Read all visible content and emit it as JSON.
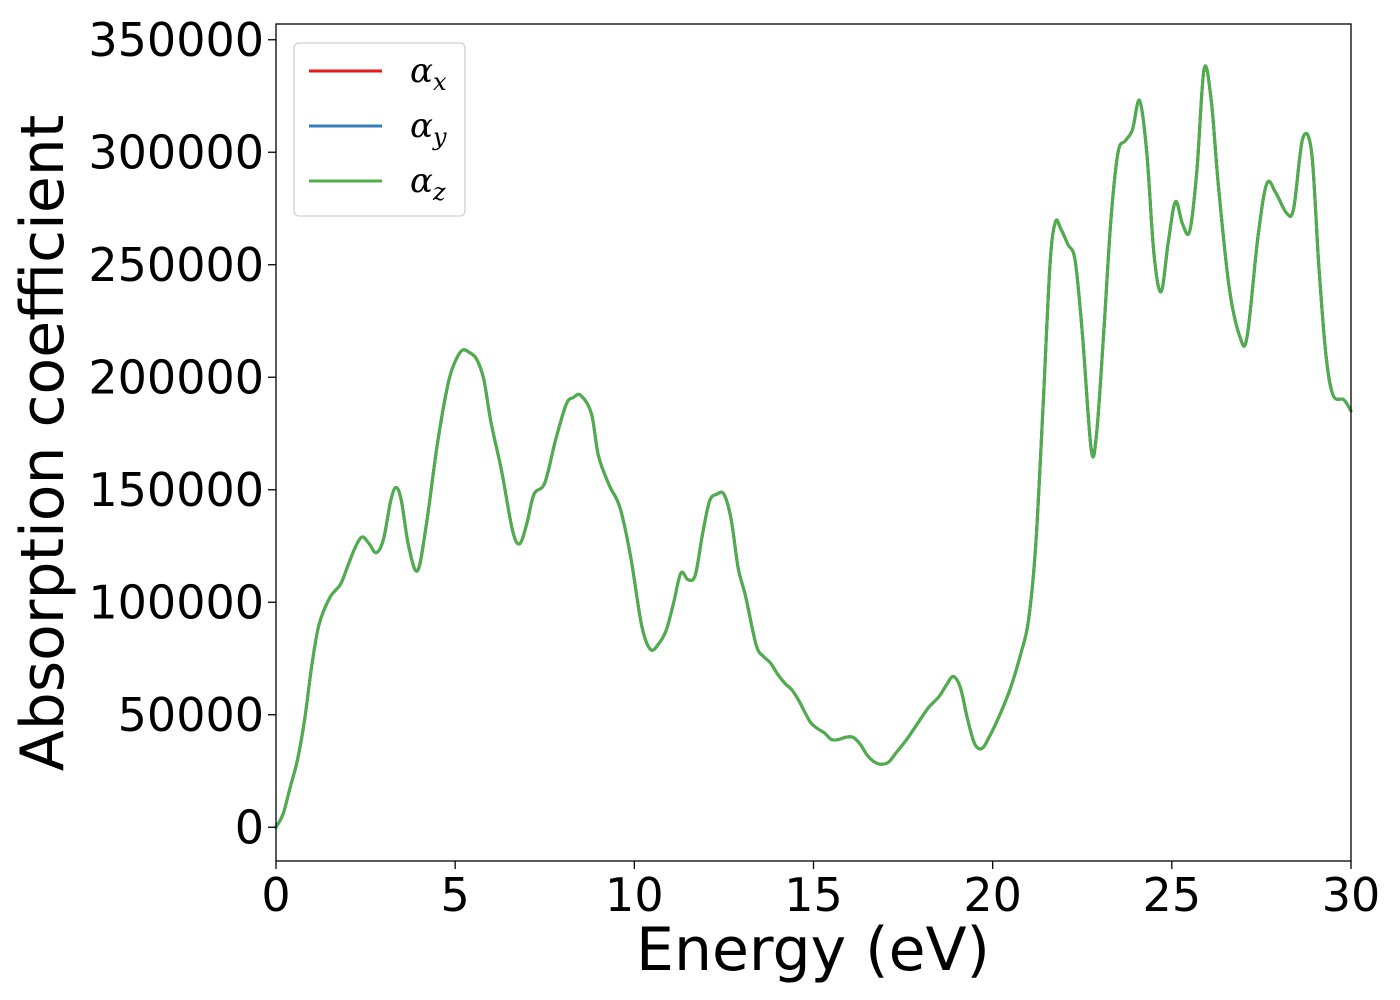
{
  "chart_data": {
    "type": "line",
    "xlabel": "Energy (eV)",
    "ylabel": "Absorption coefficient",
    "xlim": [
      0,
      30
    ],
    "ylim": [
      -15000,
      357000
    ],
    "xticks": [
      0,
      5,
      10,
      15,
      20,
      25,
      30
    ],
    "xtick_labels": [
      "0",
      "5",
      "10",
      "15",
      "20",
      "25",
      "30"
    ],
    "yticks": [
      0,
      50000,
      100000,
      150000,
      200000,
      250000,
      300000,
      350000
    ],
    "ytick_labels": [
      "0",
      "50000",
      "100000",
      "150000",
      "200000",
      "250000",
      "300000",
      "350000"
    ],
    "grid": false,
    "legend_position": "top-left",
    "x": [
      0,
      0.2,
      0.4,
      0.6,
      0.8,
      1.0,
      1.2,
      1.5,
      1.8,
      2.0,
      2.2,
      2.4,
      2.6,
      2.8,
      3.0,
      3.2,
      3.35,
      3.5,
      3.7,
      3.95,
      4.2,
      4.5,
      4.8,
      5.0,
      5.2,
      5.4,
      5.6,
      5.8,
      6.0,
      6.3,
      6.6,
      6.8,
      7.0,
      7.2,
      7.5,
      7.8,
      8.1,
      8.3,
      8.5,
      8.8,
      9.0,
      9.3,
      9.6,
      9.9,
      10.2,
      10.45,
      10.7,
      10.9,
      11.1,
      11.3,
      11.5,
      11.7,
      11.9,
      12.1,
      12.3,
      12.5,
      12.7,
      12.9,
      13.1,
      13.4,
      13.6,
      13.8,
      14.0,
      14.2,
      14.4,
      14.6,
      14.9,
      15.1,
      15.3,
      15.5,
      15.7,
      15.9,
      16.1,
      16.3,
      16.5,
      16.7,
      16.9,
      17.1,
      17.3,
      17.6,
      17.9,
      18.2,
      18.5,
      18.7,
      18.9,
      19.1,
      19.3,
      19.5,
      19.7,
      19.9,
      20.2,
      20.5,
      20.8,
      21.0,
      21.2,
      21.4,
      21.6,
      21.75,
      21.9,
      22.1,
      22.3,
      22.5,
      22.75,
      22.9,
      23.1,
      23.3,
      23.5,
      23.7,
      23.9,
      24.1,
      24.3,
      24.5,
      24.7,
      24.9,
      25.1,
      25.3,
      25.5,
      25.7,
      25.9,
      26.1,
      26.3,
      26.6,
      26.9,
      27.1,
      27.4,
      27.65,
      27.9,
      28.2,
      28.4,
      28.65,
      28.9,
      29.1,
      29.3,
      29.5,
      29.8,
      30.0
    ],
    "series": [
      {
        "name": "α_x",
        "color": "#e41a1c",
        "values": [
          0,
          6000,
          18000,
          30000,
          48000,
          72000,
          90000,
          102000,
          108000,
          116000,
          124000,
          129000,
          126000,
          122000,
          128000,
          145000,
          151000,
          145000,
          125000,
          114000,
          135000,
          170000,
          197000,
          207000,
          212000,
          211000,
          208000,
          199000,
          180000,
          158000,
          132000,
          126000,
          135000,
          148000,
          153000,
          172000,
          188000,
          191000,
          192000,
          184000,
          165000,
          152000,
          142000,
          120000,
          90000,
          79000,
          82000,
          88000,
          100000,
          113000,
          110000,
          112000,
          130000,
          145000,
          148000,
          148000,
          137000,
          115000,
          103000,
          81000,
          76000,
          73000,
          68000,
          64000,
          61000,
          56000,
          47000,
          44000,
          42000,
          39000,
          39000,
          40000,
          40000,
          37000,
          32000,
          29000,
          28000,
          29000,
          33000,
          39000,
          46000,
          53000,
          58000,
          63000,
          67000,
          62000,
          48000,
          37000,
          35000,
          40000,
          50000,
          62000,
          78000,
          92000,
          125000,
          185000,
          250000,
          269000,
          266000,
          259000,
          252000,
          220000,
          168000,
          175000,
          220000,
          270000,
          300000,
          305000,
          310000,
          323000,
          300000,
          255000,
          238000,
          260000,
          278000,
          268000,
          265000,
          292000,
          337000,
          323000,
          285000,
          240000,
          218000,
          218000,
          262000,
          286000,
          282000,
          273000,
          275000,
          306000,
          300000,
          250000,
          210000,
          192000,
          190000,
          185000
        ]
      },
      {
        "name": "α_y",
        "color": "#377eb8",
        "values": [
          0,
          6000,
          18000,
          30000,
          48000,
          72000,
          90000,
          102000,
          108000,
          116000,
          124000,
          129000,
          126000,
          122000,
          128000,
          145000,
          151000,
          145000,
          125000,
          114000,
          135000,
          170000,
          197000,
          207000,
          212000,
          211000,
          208000,
          199000,
          180000,
          158000,
          132000,
          126000,
          135000,
          148000,
          153000,
          172000,
          188000,
          191000,
          192000,
          184000,
          165000,
          152000,
          142000,
          120000,
          90000,
          79000,
          82000,
          88000,
          100000,
          113000,
          110000,
          112000,
          130000,
          145000,
          148000,
          148000,
          137000,
          115000,
          103000,
          81000,
          76000,
          73000,
          68000,
          64000,
          61000,
          56000,
          47000,
          44000,
          42000,
          39000,
          39000,
          40000,
          40000,
          37000,
          32000,
          29000,
          28000,
          29000,
          33000,
          39000,
          46000,
          53000,
          58000,
          63000,
          67000,
          62000,
          48000,
          37000,
          35000,
          40000,
          50000,
          62000,
          78000,
          92000,
          125000,
          185000,
          250000,
          269000,
          266000,
          259000,
          252000,
          220000,
          168000,
          175000,
          220000,
          270000,
          300000,
          305000,
          310000,
          323000,
          300000,
          255000,
          238000,
          260000,
          278000,
          268000,
          265000,
          292000,
          337000,
          323000,
          285000,
          240000,
          218000,
          218000,
          262000,
          286000,
          282000,
          273000,
          275000,
          306000,
          300000,
          250000,
          210000,
          192000,
          190000,
          185000
        ]
      },
      {
        "name": "α_z",
        "color": "#4daf4a",
        "values": [
          0,
          6000,
          18000,
          30000,
          48000,
          72000,
          90000,
          102000,
          108000,
          116000,
          124000,
          129000,
          126000,
          122000,
          128000,
          145000,
          151000,
          145000,
          125000,
          114000,
          135000,
          170000,
          197000,
          207000,
          212000,
          211000,
          208000,
          199000,
          180000,
          158000,
          132000,
          126000,
          135000,
          148000,
          153000,
          172000,
          188000,
          191000,
          192000,
          184000,
          165000,
          152000,
          142000,
          120000,
          90000,
          79000,
          82000,
          88000,
          100000,
          113000,
          110000,
          112000,
          130000,
          145000,
          148000,
          148000,
          137000,
          115000,
          103000,
          81000,
          76000,
          73000,
          68000,
          64000,
          61000,
          56000,
          47000,
          44000,
          42000,
          39000,
          39000,
          40000,
          40000,
          37000,
          32000,
          29000,
          28000,
          29000,
          33000,
          39000,
          46000,
          53000,
          58000,
          63000,
          67000,
          62000,
          48000,
          37000,
          35000,
          40000,
          50000,
          62000,
          78000,
          92000,
          125000,
          185000,
          250000,
          269000,
          266000,
          259000,
          252000,
          220000,
          168000,
          175000,
          220000,
          270000,
          300000,
          305000,
          310000,
          323000,
          300000,
          255000,
          238000,
          260000,
          278000,
          268000,
          265000,
          292000,
          337000,
          323000,
          285000,
          240000,
          218000,
          218000,
          262000,
          286000,
          282000,
          273000,
          275000,
          306000,
          300000,
          250000,
          210000,
          192000,
          190000,
          185000
        ]
      }
    ],
    "legend": [
      {
        "symbol": "α",
        "subscript": "x"
      },
      {
        "symbol": "α",
        "subscript": "y"
      },
      {
        "symbol": "α",
        "subscript": "z"
      }
    ]
  }
}
